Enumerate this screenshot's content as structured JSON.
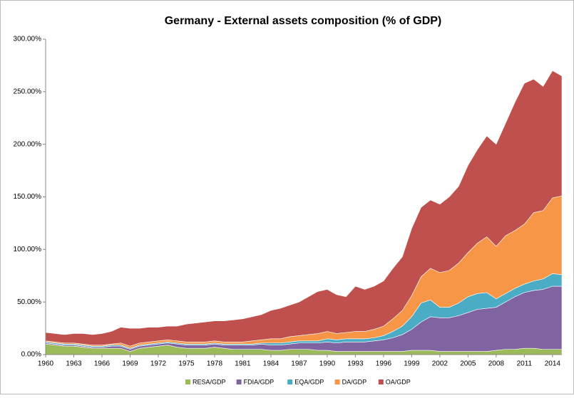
{
  "chart_data": {
    "type": "stacked_area",
    "title": "Germany - External assets composition (% of GDP)",
    "x": [
      1960,
      1961,
      1962,
      1963,
      1964,
      1965,
      1966,
      1967,
      1968,
      1969,
      1970,
      1971,
      1972,
      1973,
      1974,
      1975,
      1976,
      1977,
      1978,
      1979,
      1980,
      1981,
      1982,
      1983,
      1984,
      1985,
      1986,
      1987,
      1988,
      1989,
      1990,
      1991,
      1992,
      1993,
      1994,
      1995,
      1996,
      1997,
      1998,
      1999,
      2000,
      2001,
      2002,
      2003,
      2004,
      2005,
      2006,
      2007,
      2008,
      2009,
      2010,
      2011,
      2012,
      2013,
      2014,
      2015
    ],
    "series": [
      {
        "name": "RESA/GDP",
        "color": "#9bbb59",
        "values": [
          10,
          9,
          8,
          8,
          7,
          6,
          6,
          6,
          6,
          3,
          6,
          7,
          8,
          9,
          7,
          6,
          6,
          6,
          7,
          6,
          5,
          5,
          5,
          5,
          4,
          4,
          5,
          5,
          5,
          4,
          4,
          3,
          3,
          3,
          3,
          3,
          3,
          3,
          3,
          4,
          4,
          4,
          3,
          3,
          3,
          3,
          3,
          3,
          4,
          5,
          5,
          6,
          6,
          5,
          5,
          5
        ]
      },
      {
        "name": "FDIA/GDP",
        "color": "#8064a2",
        "values": [
          1,
          1,
          1,
          1,
          1,
          1,
          1,
          2,
          2,
          2,
          2,
          2,
          2,
          2,
          3,
          3,
          3,
          3,
          3,
          3,
          4,
          4,
          4,
          5,
          5,
          5,
          5,
          6,
          6,
          7,
          8,
          8,
          9,
          9,
          9,
          10,
          11,
          13,
          16,
          20,
          27,
          32,
          32,
          32,
          34,
          37,
          40,
          41,
          41,
          45,
          50,
          53,
          55,
          57,
          60,
          60
        ]
      },
      {
        "name": "EQA/GDP",
        "color": "#4bacc6",
        "values": [
          1,
          1,
          1,
          1,
          1,
          1,
          1,
          1,
          1,
          1,
          1,
          1,
          1,
          1,
          1,
          1,
          1,
          1,
          1,
          1,
          1,
          1,
          1,
          1,
          2,
          2,
          2,
          2,
          2,
          2,
          3,
          3,
          3,
          3,
          3,
          3,
          4,
          6,
          8,
          12,
          18,
          16,
          10,
          10,
          12,
          15,
          15,
          15,
          8,
          8,
          8,
          8,
          9,
          10,
          12,
          11
        ]
      },
      {
        "name": "DA/GDP",
        "color": "#f79646",
        "values": [
          1,
          1,
          1,
          1,
          1,
          1,
          1,
          1,
          2,
          2,
          2,
          2,
          2,
          2,
          2,
          2,
          2,
          2,
          2,
          2,
          2,
          2,
          3,
          3,
          4,
          4,
          5,
          5,
          6,
          7,
          7,
          6,
          6,
          7,
          7,
          8,
          9,
          12,
          15,
          20,
          25,
          30,
          33,
          35,
          38,
          42,
          48,
          53,
          50,
          55,
          55,
          57,
          65,
          65,
          72,
          75
        ]
      },
      {
        "name": "OA/GDP",
        "color": "#c0504d",
        "values": [
          8,
          8,
          8,
          9,
          10,
          10,
          11,
          12,
          15,
          17,
          14,
          14,
          13,
          13,
          14,
          17,
          18,
          19,
          19,
          20,
          21,
          22,
          23,
          24,
          27,
          29,
          30,
          32,
          36,
          40,
          40,
          37,
          34,
          43,
          40,
          41,
          43,
          48,
          51,
          64,
          66,
          65,
          65,
          70,
          73,
          83,
          89,
          96,
          97,
          107,
          122,
          134,
          127,
          118,
          121,
          114
        ]
      }
    ],
    "xlim": [
      1960,
      2015
    ],
    "xticks": [
      1960,
      1963,
      1966,
      1969,
      1972,
      1975,
      1978,
      1981,
      1984,
      1987,
      1990,
      1993,
      1996,
      1999,
      2002,
      2005,
      2008,
      2011,
      2014
    ],
    "ylim": [
      0,
      300
    ],
    "yticks": [
      {
        "value": 0,
        "label": "0.00%"
      },
      {
        "value": 50,
        "label": "50.00%"
      },
      {
        "value": 100,
        "label": "100.00%"
      },
      {
        "value": 150,
        "label": "150.00%"
      },
      {
        "value": 200,
        "label": "200.00%"
      },
      {
        "value": 250,
        "label": "250.00%"
      },
      {
        "value": 300,
        "label": "300.00%"
      }
    ],
    "grid": false,
    "legend": "bottom"
  }
}
